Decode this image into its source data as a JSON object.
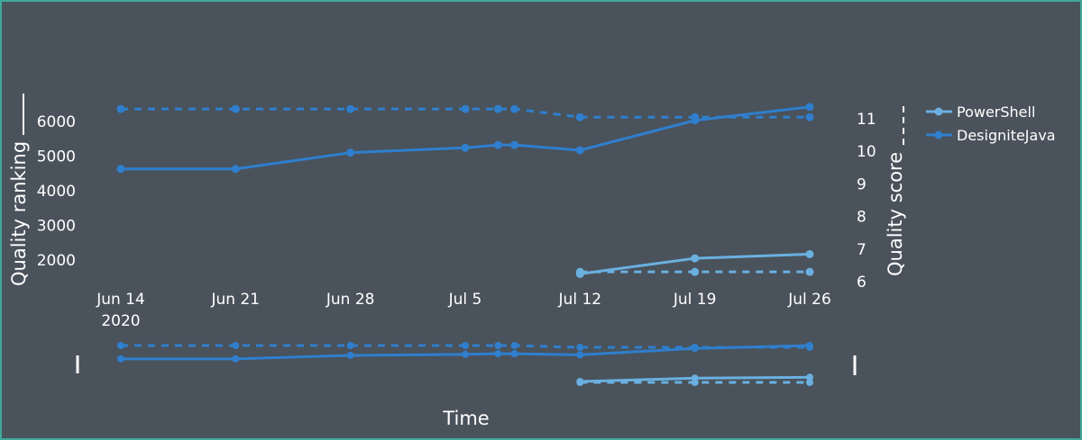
{
  "chart_data": {
    "type": "line",
    "xlabel": "Time",
    "ylabel_left": "Quality ranking",
    "ylabel_right": "Quality score",
    "x_ticks": [
      {
        "date": "2020-06-14",
        "label": "Jun 14",
        "sublabel": "2020"
      },
      {
        "date": "2020-06-21",
        "label": "Jun 21",
        "sublabel": ""
      },
      {
        "date": "2020-06-28",
        "label": "Jun 28",
        "sublabel": ""
      },
      {
        "date": "2020-07-05",
        "label": "Jul 5",
        "sublabel": ""
      },
      {
        "date": "2020-07-12",
        "label": "Jul 12",
        "sublabel": ""
      },
      {
        "date": "2020-07-19",
        "label": "Jul 19",
        "sublabel": ""
      },
      {
        "date": "2020-07-26",
        "label": "Jul 26",
        "sublabel": ""
      }
    ],
    "xlim": [
      "2020-06-14",
      "2020-07-26"
    ],
    "y_left_ticks": [
      "2000",
      "3000",
      "4000",
      "5000",
      "6000"
    ],
    "y_left_range": [
      1700,
      6400
    ],
    "y_right_ticks": [
      "6",
      "7",
      "8",
      "9",
      "10",
      "11"
    ],
    "y_right_range": [
      6,
      11.3
    ],
    "legend_position": "right",
    "series": [
      {
        "name": "PowerShell",
        "color": "#6ab0e0",
        "ranking": [
          {
            "x": "2020-07-12",
            "y": 1600
          },
          {
            "x": "2020-07-19",
            "y": 2050
          },
          {
            "x": "2020-07-26",
            "y": 2170
          }
        ],
        "score": [
          {
            "x": "2020-07-12",
            "y": 6.3
          },
          {
            "x": "2020-07-19",
            "y": 6.3
          },
          {
            "x": "2020-07-26",
            "y": 6.3
          }
        ]
      },
      {
        "name": "DesigniteJava",
        "color": "#2f7fce",
        "ranking": [
          {
            "x": "2020-06-14",
            "y": 4630
          },
          {
            "x": "2020-06-21",
            "y": 4630
          },
          {
            "x": "2020-06-28",
            "y": 5100
          },
          {
            "x": "2020-07-05",
            "y": 5240
          },
          {
            "x": "2020-07-07",
            "y": 5320
          },
          {
            "x": "2020-07-08",
            "y": 5320
          },
          {
            "x": "2020-07-12",
            "y": 5170
          },
          {
            "x": "2020-07-19",
            "y": 6030
          },
          {
            "x": "2020-07-26",
            "y": 6420
          }
        ],
        "score": [
          {
            "x": "2020-06-14",
            "y": 11.3
          },
          {
            "x": "2020-06-21",
            "y": 11.3
          },
          {
            "x": "2020-06-28",
            "y": 11.3
          },
          {
            "x": "2020-07-05",
            "y": 11.3
          },
          {
            "x": "2020-07-07",
            "y": 11.3
          },
          {
            "x": "2020-07-08",
            "y": 11.3
          },
          {
            "x": "2020-07-12",
            "y": 11.05
          },
          {
            "x": "2020-07-19",
            "y": 11.05
          },
          {
            "x": "2020-07-26",
            "y": 11.05
          }
        ]
      }
    ]
  }
}
